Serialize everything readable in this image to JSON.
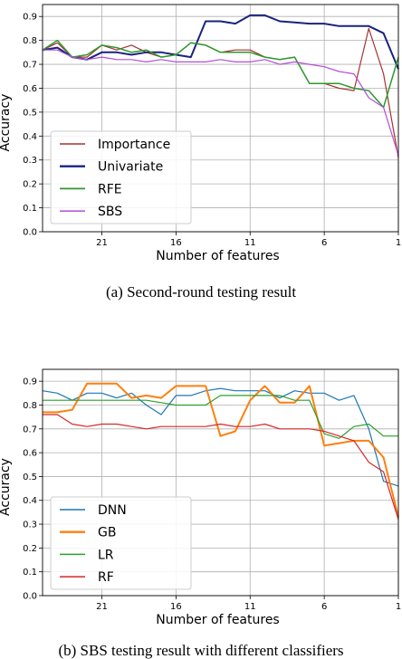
{
  "chart_data": [
    {
      "type": "line",
      "caption": "(a)  Second-round testing result",
      "xlabel": "Number of features",
      "ylabel": "Accuracy",
      "xlim": [
        25,
        1
      ],
      "ylim": [
        0,
        0.95
      ],
      "xticks": [
        21,
        16,
        11,
        6,
        1
      ],
      "yticks": [
        0.0,
        0.1,
        0.2,
        0.3,
        0.4,
        0.5,
        0.6,
        0.7,
        0.8,
        0.9
      ],
      "grid": true,
      "legend_position": "lower-left",
      "series": [
        {
          "name": "Importance",
          "color": "#a83232",
          "width": 1.2,
          "points": [
            [
              25,
              0.76
            ],
            [
              24,
              0.79
            ],
            [
              23,
              0.73
            ],
            [
              22,
              0.73
            ],
            [
              21,
              0.78
            ],
            [
              20,
              0.76
            ],
            [
              19,
              0.78
            ],
            [
              18,
              0.75
            ],
            [
              17,
              0.73
            ],
            [
              16,
              0.74
            ],
            [
              15,
              0.79
            ],
            [
              14,
              0.78
            ],
            [
              13,
              0.75
            ],
            [
              12,
              0.76
            ],
            [
              11,
              0.76
            ],
            [
              10,
              0.73
            ],
            [
              9,
              0.72
            ],
            [
              8,
              0.73
            ],
            [
              7,
              0.62
            ],
            [
              6,
              0.62
            ],
            [
              5,
              0.6
            ],
            [
              4,
              0.59
            ],
            [
              3,
              0.85
            ],
            [
              2,
              0.66
            ],
            [
              1,
              0.31
            ]
          ]
        },
        {
          "name": "Univariate",
          "color": "#1a237e",
          "width": 2.0,
          "points": [
            [
              25,
              0.76
            ],
            [
              24,
              0.77
            ],
            [
              23,
              0.73
            ],
            [
              22,
              0.72
            ],
            [
              21,
              0.75
            ],
            [
              20,
              0.75
            ],
            [
              19,
              0.74
            ],
            [
              18,
              0.75
            ],
            [
              17,
              0.75
            ],
            [
              16,
              0.74
            ],
            [
              15,
              0.73
            ],
            [
              14,
              0.88
            ],
            [
              13,
              0.88
            ],
            [
              12,
              0.87
            ],
            [
              11,
              0.905
            ],
            [
              10,
              0.905
            ],
            [
              9,
              0.88
            ],
            [
              8,
              0.875
            ],
            [
              7,
              0.87
            ],
            [
              6,
              0.87
            ],
            [
              5,
              0.86
            ],
            [
              4,
              0.86
            ],
            [
              3,
              0.86
            ],
            [
              2,
              0.83
            ],
            [
              1,
              0.68
            ]
          ]
        },
        {
          "name": "RFE",
          "color": "#2e9a2e",
          "width": 1.5,
          "points": [
            [
              25,
              0.76
            ],
            [
              24,
              0.8
            ],
            [
              23,
              0.73
            ],
            [
              22,
              0.74
            ],
            [
              21,
              0.78
            ],
            [
              20,
              0.77
            ],
            [
              19,
              0.75
            ],
            [
              18,
              0.76
            ],
            [
              17,
              0.73
            ],
            [
              16,
              0.74
            ],
            [
              15,
              0.79
            ],
            [
              14,
              0.78
            ],
            [
              13,
              0.75
            ],
            [
              12,
              0.75
            ],
            [
              11,
              0.75
            ],
            [
              10,
              0.73
            ],
            [
              9,
              0.72
            ],
            [
              8,
              0.73
            ],
            [
              7,
              0.62
            ],
            [
              6,
              0.62
            ],
            [
              5,
              0.62
            ],
            [
              4,
              0.6
            ],
            [
              3,
              0.59
            ],
            [
              2,
              0.52
            ],
            [
              1,
              0.73
            ]
          ]
        },
        {
          "name": "SBS",
          "color": "#b44dd6",
          "width": 1.2,
          "points": [
            [
              25,
              0.76
            ],
            [
              24,
              0.76
            ],
            [
              23,
              0.73
            ],
            [
              22,
              0.72
            ],
            [
              21,
              0.73
            ],
            [
              20,
              0.72
            ],
            [
              19,
              0.72
            ],
            [
              18,
              0.71
            ],
            [
              17,
              0.72
            ],
            [
              16,
              0.71
            ],
            [
              15,
              0.71
            ],
            [
              14,
              0.71
            ],
            [
              13,
              0.72
            ],
            [
              12,
              0.71
            ],
            [
              11,
              0.71
            ],
            [
              10,
              0.72
            ],
            [
              9,
              0.7
            ],
            [
              8,
              0.71
            ],
            [
              7,
              0.7
            ],
            [
              6,
              0.69
            ],
            [
              5,
              0.67
            ],
            [
              4,
              0.66
            ],
            [
              3,
              0.56
            ],
            [
              2,
              0.52
            ],
            [
              1,
              0.32
            ]
          ]
        }
      ]
    },
    {
      "type": "line",
      "caption": "(b)  SBS testing result with different classifiers",
      "xlabel": "Number of features",
      "ylabel": "Accuracy",
      "xlim": [
        25,
        1
      ],
      "ylim": [
        0,
        0.95
      ],
      "xticks": [
        21,
        16,
        11,
        6,
        1
      ],
      "yticks": [
        0.0,
        0.1,
        0.2,
        0.3,
        0.4,
        0.5,
        0.6,
        0.7,
        0.8,
        0.9
      ],
      "grid": true,
      "legend_position": "lower-left",
      "series": [
        {
          "name": "DNN",
          "color": "#1f77b4",
          "width": 1.2,
          "points": [
            [
              25,
              0.86
            ],
            [
              24,
              0.85
            ],
            [
              23,
              0.82
            ],
            [
              22,
              0.85
            ],
            [
              21,
              0.85
            ],
            [
              20,
              0.83
            ],
            [
              19,
              0.85
            ],
            [
              18,
              0.8
            ],
            [
              17,
              0.76
            ],
            [
              16,
              0.84
            ],
            [
              15,
              0.84
            ],
            [
              14,
              0.86
            ],
            [
              13,
              0.87
            ],
            [
              12,
              0.86
            ],
            [
              11,
              0.86
            ],
            [
              10,
              0.86
            ],
            [
              9,
              0.83
            ],
            [
              8,
              0.86
            ],
            [
              7,
              0.85
            ],
            [
              6,
              0.85
            ],
            [
              5,
              0.82
            ],
            [
              4,
              0.84
            ],
            [
              3,
              0.7
            ],
            [
              2,
              0.48
            ],
            [
              1,
              0.46
            ]
          ]
        },
        {
          "name": "GB",
          "color": "#ff7f0e",
          "width": 2.0,
          "points": [
            [
              25,
              0.77
            ],
            [
              24,
              0.77
            ],
            [
              23,
              0.78
            ],
            [
              22,
              0.89
            ],
            [
              21,
              0.89
            ],
            [
              20,
              0.89
            ],
            [
              19,
              0.83
            ],
            [
              18,
              0.84
            ],
            [
              17,
              0.83
            ],
            [
              16,
              0.88
            ],
            [
              15,
              0.88
            ],
            [
              14,
              0.88
            ],
            [
              13,
              0.67
            ],
            [
              12,
              0.69
            ],
            [
              11,
              0.82
            ],
            [
              10,
              0.88
            ],
            [
              9,
              0.81
            ],
            [
              8,
              0.81
            ],
            [
              7,
              0.88
            ],
            [
              6,
              0.63
            ],
            [
              5,
              0.64
            ],
            [
              4,
              0.65
            ],
            [
              3,
              0.65
            ],
            [
              2,
              0.58
            ],
            [
              1,
              0.33
            ]
          ]
        },
        {
          "name": "LR",
          "color": "#2ca02c",
          "width": 1.2,
          "points": [
            [
              25,
              0.82
            ],
            [
              24,
              0.82
            ],
            [
              23,
              0.82
            ],
            [
              22,
              0.82
            ],
            [
              21,
              0.82
            ],
            [
              20,
              0.82
            ],
            [
              19,
              0.82
            ],
            [
              18,
              0.82
            ],
            [
              17,
              0.81
            ],
            [
              16,
              0.8
            ],
            [
              15,
              0.8
            ],
            [
              14,
              0.8
            ],
            [
              13,
              0.84
            ],
            [
              12,
              0.84
            ],
            [
              11,
              0.84
            ],
            [
              10,
              0.84
            ],
            [
              9,
              0.84
            ],
            [
              8,
              0.82
            ],
            [
              7,
              0.82
            ],
            [
              6,
              0.68
            ],
            [
              5,
              0.66
            ],
            [
              4,
              0.71
            ],
            [
              3,
              0.72
            ],
            [
              2,
              0.67
            ],
            [
              1,
              0.67
            ]
          ]
        },
        {
          "name": "RF",
          "color": "#d62728",
          "width": 1.2,
          "points": [
            [
              25,
              0.76
            ],
            [
              24,
              0.76
            ],
            [
              23,
              0.72
            ],
            [
              22,
              0.71
            ],
            [
              21,
              0.72
            ],
            [
              20,
              0.72
            ],
            [
              19,
              0.71
            ],
            [
              18,
              0.7
            ],
            [
              17,
              0.71
            ],
            [
              16,
              0.71
            ],
            [
              15,
              0.71
            ],
            [
              14,
              0.71
            ],
            [
              13,
              0.72
            ],
            [
              12,
              0.71
            ],
            [
              11,
              0.71
            ],
            [
              10,
              0.72
            ],
            [
              9,
              0.7
            ],
            [
              8,
              0.7
            ],
            [
              7,
              0.7
            ],
            [
              6,
              0.69
            ],
            [
              5,
              0.67
            ],
            [
              4,
              0.65
            ],
            [
              3,
              0.56
            ],
            [
              2,
              0.52
            ],
            [
              1,
              0.32
            ]
          ]
        }
      ]
    }
  ]
}
